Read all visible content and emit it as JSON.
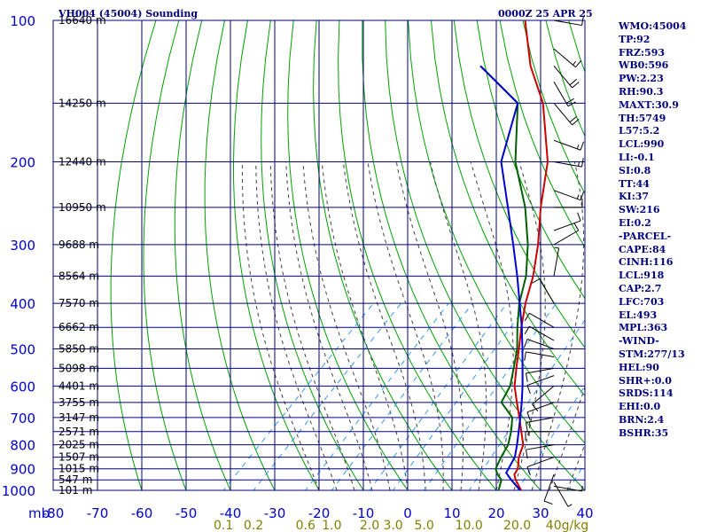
{
  "title_left": "VH004 (45004) Sounding",
  "title_right": "0000Z 25 APR 25",
  "indices": [
    "WMO:45004",
    "TP:92",
    "FRZ:593",
    "WB0:596",
    "PW:2.23",
    "RH:90.3",
    "MAXT:30.9",
    "TH:5749",
    "L57:5.2",
    "LCL:990",
    "LI:-0.1",
    "SI:0.8",
    "TT:44",
    "KI:37",
    "SW:216",
    "EI:0.2",
    "-PARCEL-",
    "CAPE:84",
    "CINH:116",
    "LCL:918",
    "CAP:2.7",
    "LFC:703",
    "EL:493",
    "MPL:363",
    "-WIND-",
    "STM:277/13",
    "HEL:90",
    "SHR+:0.0",
    "SRDS:114",
    "EHI:0.0",
    "BRN:2.4",
    "BSHR:35"
  ],
  "colors": {
    "isobar": "#000080",
    "isotherm": "#000080",
    "dry_adiabat": "#00a000",
    "moist_adiabat": "#404040",
    "mixing_ratio": "#3399ff",
    "temperature": "#cc0000",
    "dewpoint": "#006000",
    "parcel": "#0000cc",
    "wind": "#000000",
    "pressure_label": "#0000cc",
    "temp_label": "#0000cc",
    "height_label": "#000000",
    "mixing_label": "#808000"
  },
  "chart_data": {
    "type": "line",
    "title": "VH004 (45004) Sounding",
    "xlabel": "",
    "ylabel": "mb",
    "y_label_text": "mb",
    "x_scale": "linear temperature (°C)",
    "y_scale": "log pressure",
    "grid": true,
    "xlim": [
      -80,
      40
    ],
    "ylim": [
      1000,
      100
    ],
    "pressure_ticks": [
      100,
      200,
      300,
      400,
      500,
      600,
      700,
      800,
      900,
      1000
    ],
    "pressure_tick_labels": [
      "100",
      "200",
      "300",
      "400",
      "500",
      "600",
      "700",
      "800",
      "900",
      "1000"
    ],
    "temperature_ticks": [
      -80,
      -70,
      -60,
      -50,
      -40,
      -30,
      -20,
      -10,
      0,
      10,
      20,
      30,
      40
    ],
    "temperature_tick_labels": [
      "-80",
      "-70",
      "-60",
      "-50",
      "-40",
      "-30",
      "-20",
      "-10",
      "0",
      "10",
      "20",
      "30",
      "40"
    ],
    "height_labels": [
      {
        "p": 100,
        "label": "16640 m"
      },
      {
        "p": 150,
        "label": "14250 m"
      },
      {
        "p": 200,
        "label": "12440 m"
      },
      {
        "p": 250,
        "label": "10950 m"
      },
      {
        "p": 300,
        "label": "9688 m"
      },
      {
        "p": 350,
        "label": "8564 m"
      },
      {
        "p": 400,
        "label": "7570 m"
      },
      {
        "p": 450,
        "label": "6662 m"
      },
      {
        "p": 500,
        "label": "5850 m"
      },
      {
        "p": 550,
        "label": "5098 m"
      },
      {
        "p": 600,
        "label": "4401 m"
      },
      {
        "p": 650,
        "label": "3755 m"
      },
      {
        "p": 700,
        "label": "3147 m"
      },
      {
        "p": 750,
        "label": "2571 m"
      },
      {
        "p": 800,
        "label": "2025 m"
      },
      {
        "p": 850,
        "label": "1507 m"
      },
      {
        "p": 900,
        "label": "1015 m"
      },
      {
        "p": 950,
        "label": "547 m"
      },
      {
        "p": 1000,
        "label": "101 m"
      }
    ],
    "mixing_ratio_labels": [
      "0.1",
      "0.2",
      "0.6",
      "1.0",
      "2.0",
      "3.0",
      "5.0",
      "10.0",
      "20.0",
      "40g/kg"
    ],
    "mixing_ratio_values": [
      0.1,
      0.2,
      0.6,
      1.0,
      2.0,
      3.0,
      5.0,
      10.0,
      20.0,
      40.0
    ],
    "series": [
      {
        "key": "temperature",
        "points": [
          {
            "p": 1000,
            "t": 25.6
          },
          {
            "p": 950,
            "t": 22.0
          },
          {
            "p": 925,
            "t": 20.5
          },
          {
            "p": 900,
            "t": 20.0
          },
          {
            "p": 850,
            "t": 17.6
          },
          {
            "p": 800,
            "t": 15.8
          },
          {
            "p": 750,
            "t": 12.4
          },
          {
            "p": 700,
            "t": 8.8
          },
          {
            "p": 650,
            "t": 4.8
          },
          {
            "p": 600,
            "t": 0.6
          },
          {
            "p": 550,
            "t": -3.0
          },
          {
            "p": 500,
            "t": -6.8
          },
          {
            "p": 450,
            "t": -11.1
          },
          {
            "p": 400,
            "t": -15.6
          },
          {
            "p": 350,
            "t": -20.0
          },
          {
            "p": 300,
            "t": -26.0
          },
          {
            "p": 250,
            "t": -33.8
          },
          {
            "p": 200,
            "t": -42.5
          },
          {
            "p": 150,
            "t": -56.8
          },
          {
            "p": 125,
            "t": -68.0
          },
          {
            "p": 100,
            "t": -79.5
          }
        ]
      },
      {
        "key": "dewpoint",
        "points": [
          {
            "p": 1000,
            "t": 20.5
          },
          {
            "p": 950,
            "t": 18.8
          },
          {
            "p": 925,
            "t": 16.7
          },
          {
            "p": 900,
            "t": 15.0
          },
          {
            "p": 850,
            "t": 13.6
          },
          {
            "p": 800,
            "t": 12.4
          },
          {
            "p": 750,
            "t": 10.1
          },
          {
            "p": 700,
            "t": 7.2
          },
          {
            "p": 650,
            "t": 1.3
          },
          {
            "p": 600,
            "t": -0.4
          },
          {
            "p": 550,
            "t": -3.6
          },
          {
            "p": 500,
            "t": -7.2
          },
          {
            "p": 450,
            "t": -12.0
          },
          {
            "p": 400,
            "t": -17.0
          },
          {
            "p": 350,
            "t": -21.6
          },
          {
            "p": 300,
            "t": -28.3
          },
          {
            "p": 250,
            "t": -37.3
          },
          {
            "p": 200,
            "t": -49.8
          },
          {
            "p": 150,
            "t": -62.5
          },
          {
            "p": 125,
            "t": -79.3
          }
        ]
      },
      {
        "key": "parcel",
        "points": [
          {
            "p": 1000,
            "t": 25.4
          },
          {
            "p": 950,
            "t": 21.0
          },
          {
            "p": 918,
            "t": 18.3
          },
          {
            "p": 850,
            "t": 16.7
          },
          {
            "p": 800,
            "t": 14.4
          },
          {
            "p": 750,
            "t": 11.8
          },
          {
            "p": 700,
            "t": 9.0
          },
          {
            "p": 650,
            "t": 5.9
          },
          {
            "p": 600,
            "t": 2.4
          },
          {
            "p": 550,
            "t": -1.6
          },
          {
            "p": 500,
            "t": -6.0
          },
          {
            "p": 450,
            "t": -11.0
          },
          {
            "p": 400,
            "t": -16.9
          },
          {
            "p": 350,
            "t": -23.6
          },
          {
            "p": 300,
            "t": -31.6
          },
          {
            "p": 250,
            "t": -41.2
          },
          {
            "p": 200,
            "t": -53.0
          },
          {
            "p": 150,
            "t": -62.5
          },
          {
            "p": 125,
            "t": -79.3
          }
        ]
      }
    ],
    "wind_barbs": [
      {
        "p": 1000,
        "dir": 90,
        "spd": 5
      },
      {
        "p": 980,
        "dir": 100,
        "spd": 5
      },
      {
        "p": 960,
        "dir": 150,
        "spd": 5
      },
      {
        "p": 925,
        "dir": 200,
        "spd": 10
      },
      {
        "p": 850,
        "dir": 250,
        "spd": 10
      },
      {
        "p": 800,
        "dir": 260,
        "spd": 10
      },
      {
        "p": 750,
        "dir": 270,
        "spd": 15
      },
      {
        "p": 700,
        "dir": 260,
        "spd": 15
      },
      {
        "p": 650,
        "dir": 250,
        "spd": 10
      },
      {
        "p": 600,
        "dir": 230,
        "spd": 10
      },
      {
        "p": 570,
        "dir": 250,
        "spd": 10
      },
      {
        "p": 550,
        "dir": 260,
        "spd": 10
      },
      {
        "p": 520,
        "dir": 280,
        "spd": 10
      },
      {
        "p": 500,
        "dir": 290,
        "spd": 10
      },
      {
        "p": 480,
        "dir": 300,
        "spd": 10
      },
      {
        "p": 450,
        "dir": 300,
        "spd": 10
      },
      {
        "p": 400,
        "dir": 330,
        "spd": 10
      },
      {
        "p": 350,
        "dir": 10,
        "spd": 5
      },
      {
        "p": 300,
        "dir": 60,
        "spd": 10
      },
      {
        "p": 280,
        "dir": 70,
        "spd": 10
      },
      {
        "p": 250,
        "dir": 90,
        "spd": 10
      },
      {
        "p": 230,
        "dir": 110,
        "spd": 15
      },
      {
        "p": 200,
        "dir": 100,
        "spd": 15
      },
      {
        "p": 180,
        "dir": 110,
        "spd": 15
      },
      {
        "p": 150,
        "dir": 140,
        "spd": 20
      },
      {
        "p": 135,
        "dir": 150,
        "spd": 20
      },
      {
        "p": 125,
        "dir": 140,
        "spd": 20
      },
      {
        "p": 115,
        "dir": 130,
        "spd": 15
      },
      {
        "p": 100,
        "dir": 100,
        "spd": 10
      }
    ]
  }
}
